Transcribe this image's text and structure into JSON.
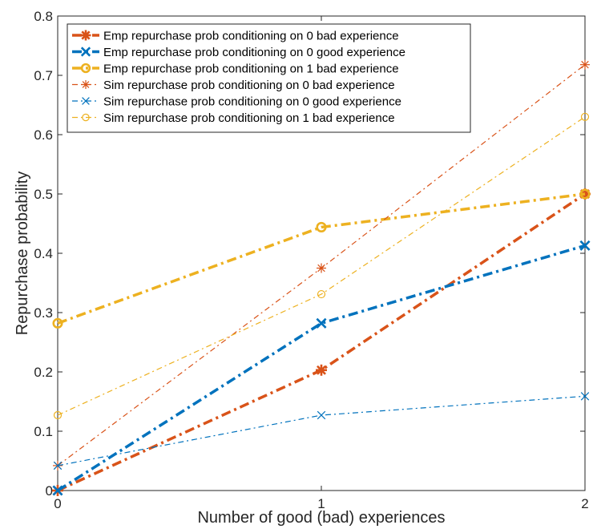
{
  "chart_data": {
    "type": "line",
    "title": "",
    "xlabel": "Number of good (bad) experiences",
    "ylabel": "Repurchase probability",
    "xlim": [
      0,
      2
    ],
    "ylim": [
      0,
      0.8
    ],
    "x": [
      0,
      1,
      2
    ],
    "x_ticks": [
      "0",
      "1",
      "2"
    ],
    "y_ticks": [
      "0",
      "0.1",
      "0.2",
      "0.3",
      "0.4",
      "0.5",
      "0.6",
      "0.7",
      "0.8"
    ],
    "grid": false,
    "legend_position": "top-left",
    "series": [
      {
        "name": "Emp repurchase prob conditioning on 0 bad experience",
        "values": [
          0.0,
          0.203,
          0.5
        ],
        "color": "#D95319",
        "marker": "asterisk",
        "style": "dashdot-thick"
      },
      {
        "name": "Emp repurchase prob conditioning on 0 good experience",
        "values": [
          0.0,
          0.282,
          0.413
        ],
        "color": "#0072BD",
        "marker": "x",
        "style": "dashdot-thick"
      },
      {
        "name": "Emp repurchase prob conditioning on 1 bad experience",
        "values": [
          0.282,
          0.444,
          0.5
        ],
        "color": "#EDB120",
        "marker": "circle",
        "style": "dashdot-thick"
      },
      {
        "name": "Sim repurchase prob conditioning on 0 bad experience",
        "values": [
          0.042,
          0.375,
          0.718
        ],
        "color": "#D95319",
        "marker": "asterisk",
        "style": "dashdot-thin"
      },
      {
        "name": "Sim repurchase prob conditioning on 0 good experience",
        "values": [
          0.042,
          0.127,
          0.159
        ],
        "color": "#0072BD",
        "marker": "x",
        "style": "dashdot-thin"
      },
      {
        "name": "Sim repurchase prob conditioning on 1 bad experience",
        "values": [
          0.127,
          0.331,
          0.63
        ],
        "color": "#EDB120",
        "marker": "circle",
        "style": "dashdot-thin"
      }
    ]
  }
}
